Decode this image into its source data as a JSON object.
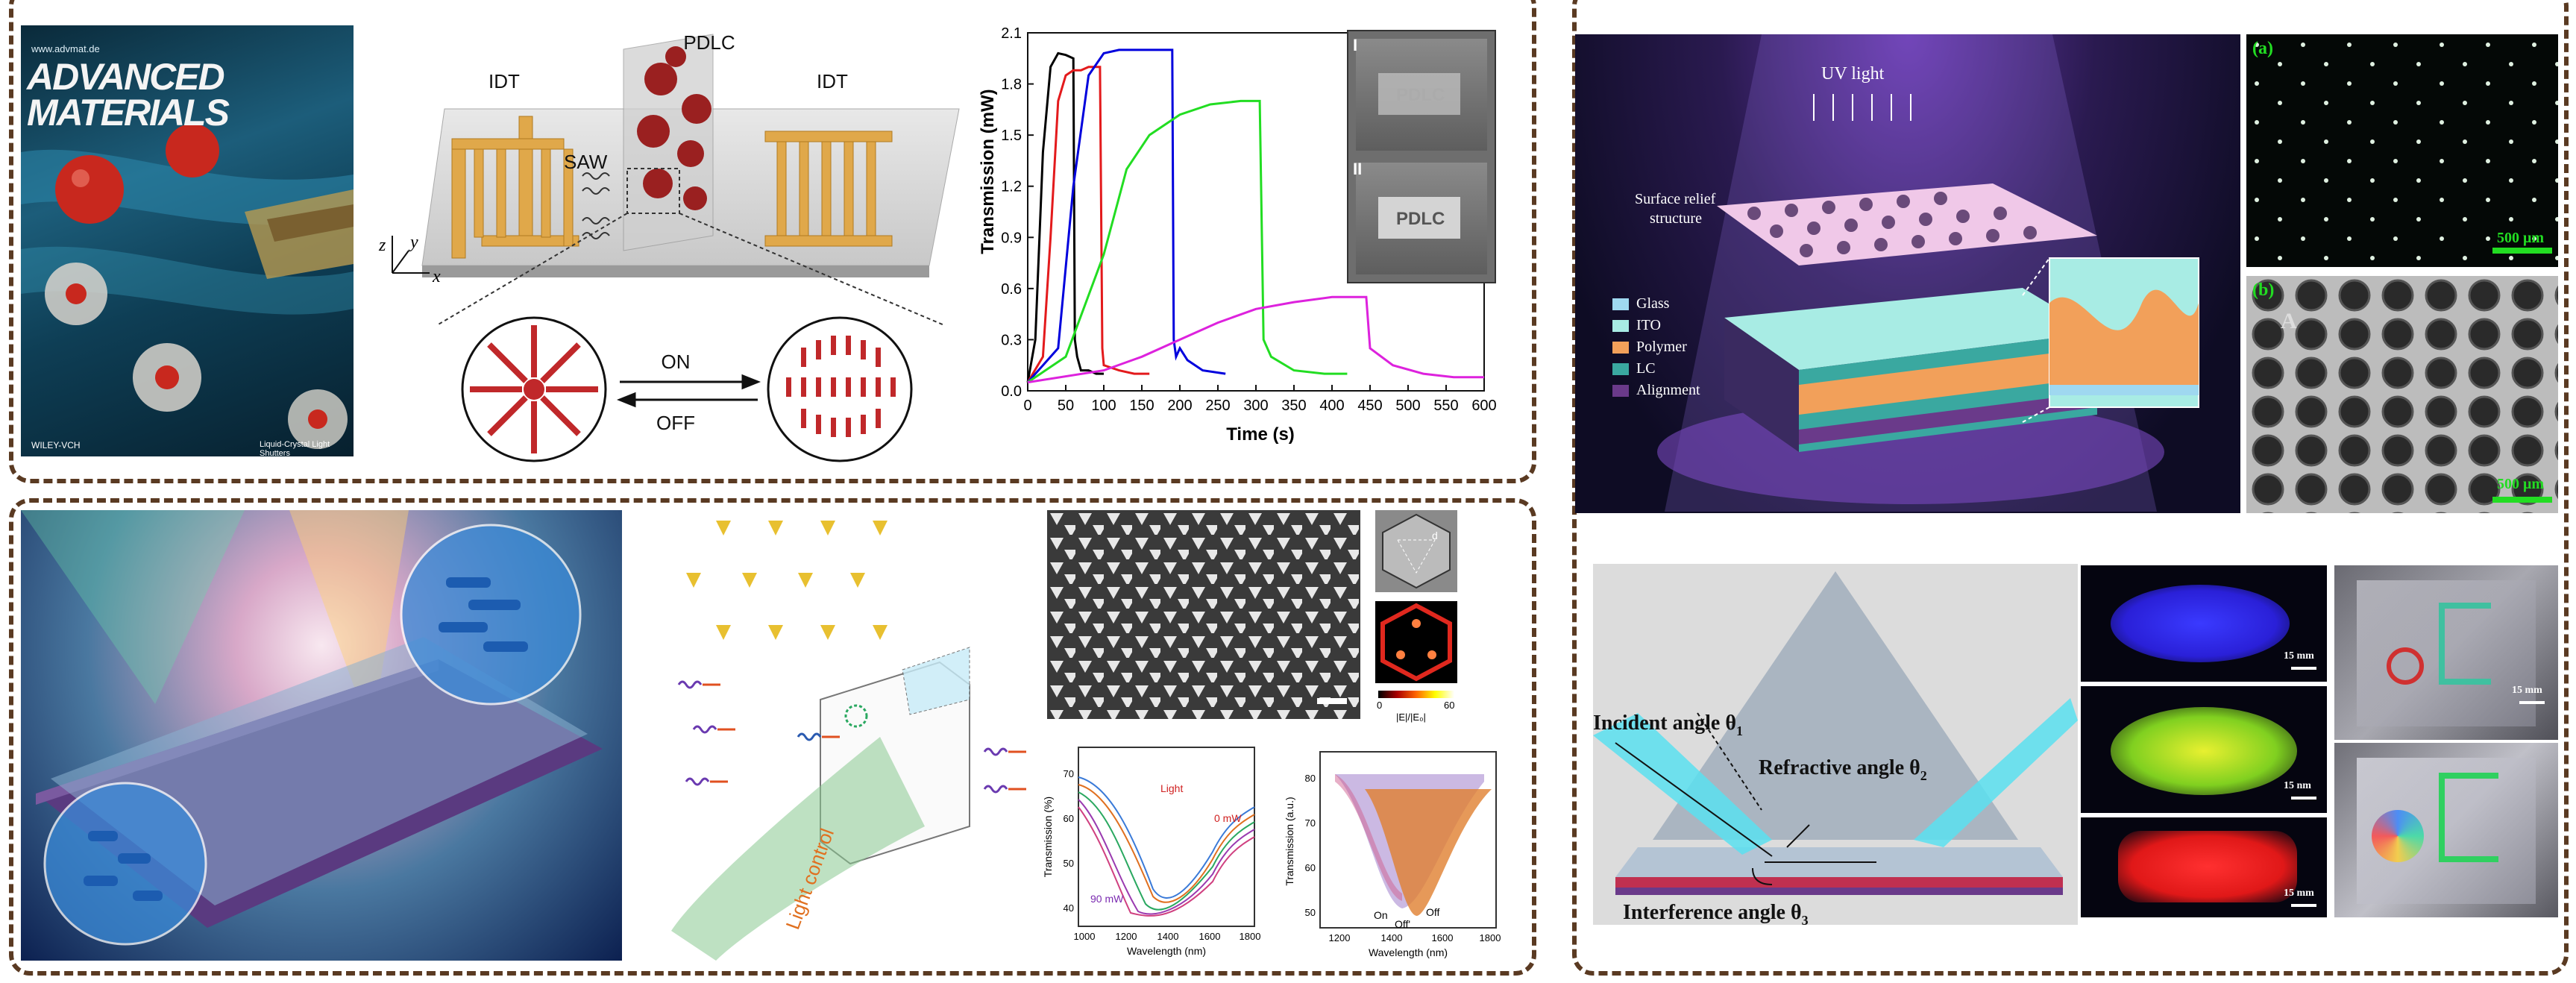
{
  "cover": {
    "url": "www.advmat.de",
    "title_line1": "ADVANCED",
    "title_line2": "MATERIALS",
    "publisher": "WILEY-VCH",
    "footer": "Liquid-Crystal Light Shutters"
  },
  "saw_device": {
    "left_label": "IDT",
    "right_label": "IDT",
    "center_label": "PDLC",
    "wave_label": "SAW",
    "axis_x": "x",
    "axis_y": "y",
    "axis_z": "z",
    "switch_on": "ON",
    "switch_off": "OFF"
  },
  "chart_data": {
    "type": "line",
    "xlabel": "Time (s)",
    "ylabel": "Transmission (mW)",
    "xlim": [
      0,
      600
    ],
    "ylim": [
      0,
      2.1
    ],
    "xticks": [
      "0",
      "50",
      "100",
      "150",
      "200",
      "250",
      "300",
      "350",
      "400",
      "450",
      "500",
      "550",
      "600"
    ],
    "yticks": [
      "0.0",
      "0.3",
      "0.6",
      "0.9",
      "1.2",
      "1.5",
      "1.8",
      "2.1"
    ],
    "series": [
      {
        "color": "#000000",
        "x": [
          0,
          10,
          20,
          30,
          40,
          50,
          55,
          60,
          62,
          65,
          70,
          80,
          90,
          100
        ],
        "y": [
          0.05,
          0.3,
          1.4,
          1.9,
          1.98,
          1.97,
          1.96,
          1.95,
          0.3,
          0.2,
          0.12,
          0.12,
          0.1,
          0.1
        ]
      },
      {
        "color": "#e31a1c",
        "x": [
          0,
          20,
          30,
          40,
          50,
          60,
          70,
          80,
          90,
          95,
          98,
          100,
          120,
          140,
          160
        ],
        "y": [
          0.05,
          0.2,
          0.9,
          1.7,
          1.85,
          1.88,
          1.88,
          1.9,
          1.9,
          1.9,
          0.25,
          0.15,
          0.12,
          0.1,
          0.1
        ]
      },
      {
        "color": "#0000dd",
        "x": [
          0,
          40,
          60,
          80,
          100,
          120,
          140,
          160,
          180,
          190,
          192,
          195,
          200,
          210,
          230,
          260
        ],
        "y": [
          0.05,
          0.25,
          1.2,
          1.85,
          1.98,
          2.0,
          2.0,
          2.0,
          2.0,
          2.0,
          0.3,
          0.2,
          0.25,
          0.18,
          0.12,
          0.1
        ]
      },
      {
        "color": "#22dd22",
        "x": [
          0,
          50,
          100,
          130,
          160,
          200,
          240,
          280,
          300,
          305,
          310,
          320,
          350,
          390,
          420
        ],
        "y": [
          0.05,
          0.2,
          0.8,
          1.3,
          1.5,
          1.62,
          1.68,
          1.7,
          1.7,
          1.7,
          0.3,
          0.2,
          0.12,
          0.1,
          0.1
        ]
      },
      {
        "color": "#dd22dd",
        "x": [
          0,
          100,
          150,
          200,
          250,
          300,
          350,
          400,
          440,
          445,
          450,
          480,
          520,
          560,
          600
        ],
        "y": [
          0.05,
          0.12,
          0.2,
          0.3,
          0.4,
          0.48,
          0.52,
          0.55,
          0.55,
          0.55,
          0.25,
          0.15,
          0.1,
          0.08,
          0.08
        ]
      }
    ]
  },
  "inset": {
    "label1": "I",
    "label2": "II",
    "sign": "PDLC"
  },
  "uv_device": {
    "uv_label": "UV light",
    "relief_label_1": "Surface relief",
    "relief_label_2": "structure",
    "legend": [
      {
        "label": "Glass",
        "color": "#9fd8f0"
      },
      {
        "label": "ITO",
        "color": "#a8ece4"
      },
      {
        "label": "Polymer",
        "color": "#f2a05a"
      },
      {
        "label": "LC",
        "color": "#3aa8a0"
      },
      {
        "label": "Alignment",
        "color": "#6a3a8a"
      }
    ]
  },
  "micro": {
    "a_label": "(a)",
    "a_scale": "500 μm",
    "b_label": "(b)",
    "b_scale": "500 μm",
    "letter": "A"
  },
  "prism": {
    "incident": "Incident angle θ",
    "incident_sub": "1",
    "refractive": "Refractive angle θ",
    "refractive_sub": "2",
    "interference": "Interference angle θ",
    "interference_sub": "3"
  },
  "photos": {
    "scale_15mm": "15 mm",
    "scale_15nm": "15 nm"
  },
  "metasurface": {
    "light_control": "Light control"
  },
  "sem": {
    "d_label": "d",
    "cbar_min": "0",
    "cbar_max": "60",
    "cbar_label": "|E|/|E₀|"
  },
  "chart_small_left": {
    "xlabel": "Wavelength (nm)",
    "ylabel": "Transmission (%)",
    "xticks": [
      "1000",
      "1200",
      "1400",
      "1600",
      "1800"
    ],
    "yticks": [
      "40",
      "50",
      "60",
      "70"
    ],
    "light_label": "Light",
    "label_0": "0 mW",
    "label_90": "90 mW"
  },
  "chart_small_right": {
    "xlabel": "Wavelength (nm)",
    "ylabel": "Transmission (a.u.)",
    "xticks": [
      "1200",
      "1400",
      "1600",
      "1800"
    ],
    "yticks": [
      "50",
      "60",
      "70",
      "80"
    ],
    "on": "On",
    "off": "Off",
    "off2": "Off'"
  }
}
